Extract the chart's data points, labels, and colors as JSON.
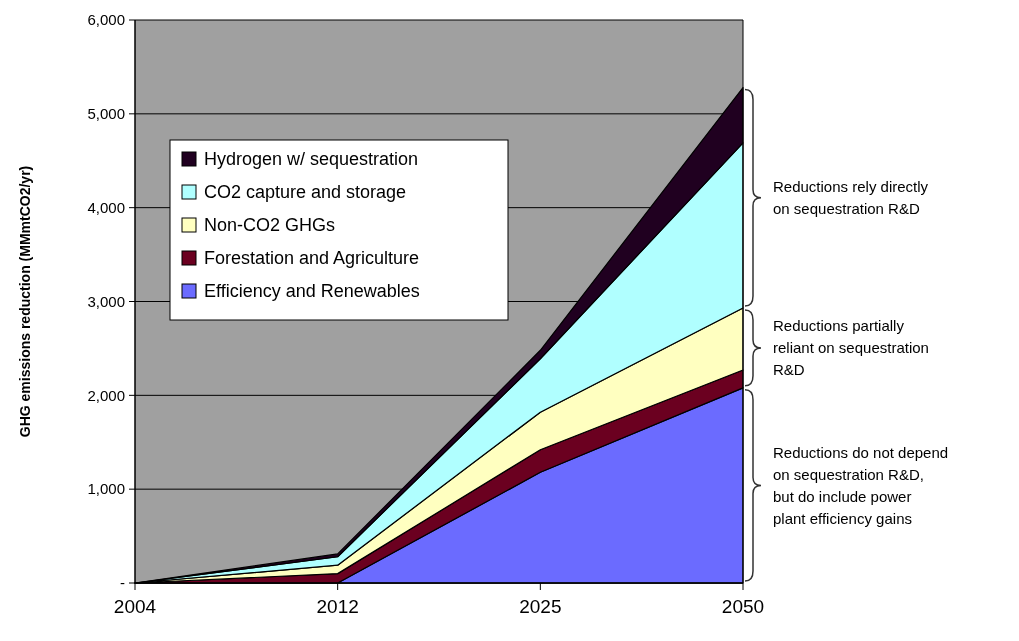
{
  "chart_data": {
    "type": "area",
    "stacked": true,
    "ylabel": "GHG emissions reduction (MMmtCO2/yr)",
    "categories": [
      "2004",
      "2012",
      "2025",
      "2050"
    ],
    "series": [
      {
        "name": "Efficiency and Renewables",
        "color": "#6b6bff",
        "values": [
          0,
          0,
          1180,
          2080
        ]
      },
      {
        "name": "Forestation and Agriculture",
        "color": "#6b0020",
        "values": [
          0,
          100,
          240,
          190
        ]
      },
      {
        "name": "Non-CO2 GHGs",
        "color": "#ffffc0",
        "values": [
          0,
          90,
          400,
          660
        ]
      },
      {
        "name": "CO2 capture and storage",
        "color": "#b0ffff",
        "values": [
          0,
          90,
          570,
          1760
        ]
      },
      {
        "name": "Hydrogen w/ sequestration",
        "color": "#200020",
        "values": [
          0,
          30,
          90,
          590
        ]
      }
    ],
    "ylim": [
      0,
      6000
    ],
    "yticks": [
      {
        "value": 0,
        "label": "-"
      },
      {
        "value": 1000,
        "label": "1,000"
      },
      {
        "value": 2000,
        "label": "2,000"
      },
      {
        "value": 3000,
        "label": "3,000"
      },
      {
        "value": 4000,
        "label": "4,000"
      },
      {
        "value": 5000,
        "label": "5,000"
      },
      {
        "value": 6000,
        "label": "6,000"
      }
    ],
    "grid": "y",
    "legend": "top left",
    "annotations": [
      "Reductions do not depend on sequestration R&D, but do include power plant efficiency gains",
      "Reductions partially reliant on sequestration R&D",
      "Reductions rely directly on sequestration R&D"
    ]
  }
}
